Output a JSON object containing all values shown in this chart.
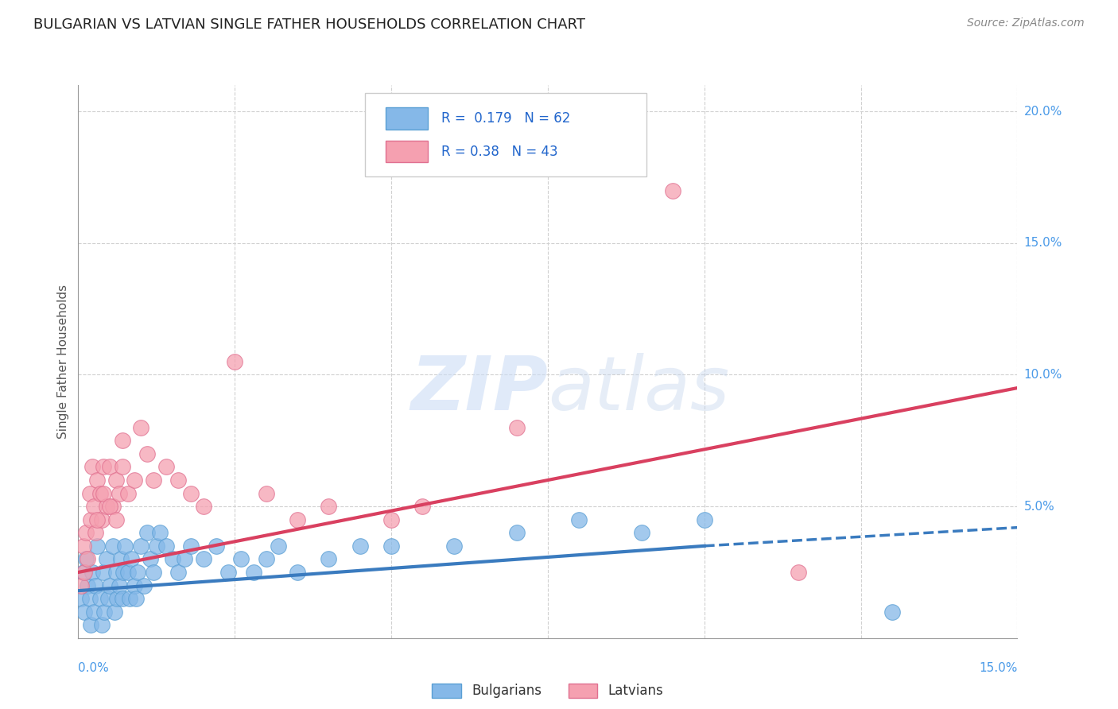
{
  "title": "BULGARIAN VS LATVIAN SINGLE FATHER HOUSEHOLDS CORRELATION CHART",
  "source": "Source: ZipAtlas.com",
  "ylabel": "Single Father Households",
  "watermark": "ZIPatlas",
  "xlim": [
    0.0,
    15.0
  ],
  "ylim": [
    0.0,
    21.0
  ],
  "ytick_vals": [
    0.0,
    5.0,
    10.0,
    15.0,
    20.0
  ],
  "ytick_labels": [
    "",
    "5.0%",
    "10.0%",
    "15.0%",
    "20.0%"
  ],
  "xtick_vals": [
    0.0,
    2.5,
    5.0,
    7.5,
    10.0,
    12.5,
    15.0
  ],
  "bg_color": "#ffffff",
  "grid_color": "#d0d0d0",
  "bulgarians_color": "#85b8e8",
  "bulgarians_edge": "#5a9fd4",
  "bulgarians_line": "#3a7bbf",
  "latvians_color": "#f5a0b0",
  "latvians_edge": "#e07090",
  "latvians_line": "#d94060",
  "R_bul": 0.179,
  "N_bul": 62,
  "R_lat": 0.38,
  "N_lat": 43,
  "legend_text_color": "#2266cc",
  "bul_x": [
    0.05,
    0.08,
    0.1,
    0.12,
    0.15,
    0.18,
    0.2,
    0.22,
    0.25,
    0.28,
    0.3,
    0.35,
    0.38,
    0.4,
    0.42,
    0.45,
    0.48,
    0.5,
    0.55,
    0.58,
    0.6,
    0.62,
    0.65,
    0.68,
    0.7,
    0.72,
    0.75,
    0.8,
    0.82,
    0.85,
    0.9,
    0.92,
    0.95,
    1.0,
    1.05,
    1.1,
    1.15,
    1.2,
    1.25,
    1.3,
    1.4,
    1.5,
    1.6,
    1.7,
    1.8,
    2.0,
    2.2,
    2.4,
    2.6,
    2.8,
    3.0,
    3.2,
    3.5,
    4.0,
    4.5,
    5.0,
    6.0,
    7.0,
    8.0,
    9.0,
    10.0,
    13.0
  ],
  "bul_y": [
    1.5,
    2.5,
    1.0,
    3.0,
    2.0,
    1.5,
    0.5,
    2.5,
    1.0,
    2.0,
    3.5,
    1.5,
    0.5,
    2.5,
    1.0,
    3.0,
    1.5,
    2.0,
    3.5,
    1.0,
    2.5,
    1.5,
    2.0,
    3.0,
    1.5,
    2.5,
    3.5,
    2.5,
    1.5,
    3.0,
    2.0,
    1.5,
    2.5,
    3.5,
    2.0,
    4.0,
    3.0,
    2.5,
    3.5,
    4.0,
    3.5,
    3.0,
    2.5,
    3.0,
    3.5,
    3.0,
    3.5,
    2.5,
    3.0,
    2.5,
    3.0,
    3.5,
    2.5,
    3.0,
    3.5,
    3.5,
    3.5,
    4.0,
    4.5,
    4.0,
    4.5,
    1.0
  ],
  "lat_x": [
    0.05,
    0.08,
    0.1,
    0.12,
    0.15,
    0.18,
    0.2,
    0.22,
    0.25,
    0.28,
    0.3,
    0.35,
    0.38,
    0.4,
    0.45,
    0.5,
    0.55,
    0.6,
    0.65,
    0.7,
    0.8,
    0.9,
    1.0,
    1.1,
    1.2,
    1.4,
    1.6,
    1.8,
    2.0,
    2.5,
    3.0,
    3.5,
    4.0,
    5.0,
    5.5,
    7.0,
    9.5,
    11.5,
    0.3,
    0.4,
    0.5,
    0.6,
    0.7
  ],
  "lat_y": [
    2.0,
    3.5,
    2.5,
    4.0,
    3.0,
    5.5,
    4.5,
    6.5,
    5.0,
    4.0,
    6.0,
    5.5,
    4.5,
    6.5,
    5.0,
    6.5,
    5.0,
    6.0,
    5.5,
    6.5,
    5.5,
    6.0,
    8.0,
    7.0,
    6.0,
    6.5,
    6.0,
    5.5,
    5.0,
    10.5,
    5.5,
    4.5,
    5.0,
    4.5,
    5.0,
    8.0,
    17.0,
    2.5,
    4.5,
    5.5,
    5.0,
    4.5,
    7.5
  ],
  "bul_reg_x1": 0.0,
  "bul_reg_y1": 1.8,
  "bul_reg_x2": 10.0,
  "bul_reg_y2": 3.5,
  "bul_reg_dash_x1": 10.0,
  "bul_reg_dash_y1": 3.5,
  "bul_reg_dash_x2": 15.0,
  "bul_reg_dash_y2": 4.2,
  "lat_reg_x1": 0.0,
  "lat_reg_y1": 2.5,
  "lat_reg_x2": 15.0,
  "lat_reg_y2": 9.5
}
